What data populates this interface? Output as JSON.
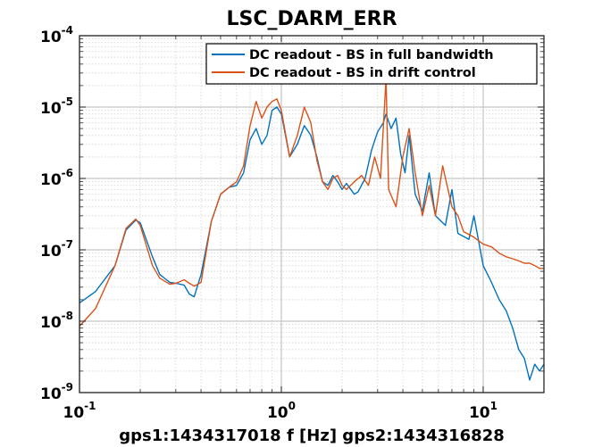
{
  "chart_data": {
    "type": "line",
    "title": "LSC_DARM_ERR",
    "xlabel": "gps1:1434317018  f [Hz]  gps2:1434316828",
    "ylabel": "",
    "xscale": "log",
    "yscale": "log",
    "xlim": [
      0.1,
      20
    ],
    "ylim": [
      1e-09,
      0.0001
    ],
    "grid": true,
    "legend_position": "top-right",
    "x_ticks": [
      {
        "value": 0.1,
        "base": "10",
        "exp": "-1"
      },
      {
        "value": 1,
        "base": "10",
        "exp": "0"
      },
      {
        "value": 10,
        "base": "10",
        "exp": "1"
      }
    ],
    "y_ticks": [
      {
        "value": 1e-09,
        "base": "10",
        "exp": "-9"
      },
      {
        "value": 1e-08,
        "base": "10",
        "exp": "-8"
      },
      {
        "value": 1e-07,
        "base": "10",
        "exp": "-7"
      },
      {
        "value": 1e-06,
        "base": "10",
        "exp": "-6"
      },
      {
        "value": 1e-05,
        "base": "10",
        "exp": "-5"
      },
      {
        "value": 0.0001,
        "base": "10",
        "exp": "-4"
      }
    ],
    "series": [
      {
        "name": "DC readout - BS in full bandwidth",
        "color": "#0072bd",
        "points": [
          [
            0.1,
            1.8e-08
          ],
          [
            0.12,
            2.6e-08
          ],
          [
            0.15,
            6e-08
          ],
          [
            0.17,
            1.9e-07
          ],
          [
            0.19,
            2.6e-07
          ],
          [
            0.2,
            2.4e-07
          ],
          [
            0.23,
            8e-08
          ],
          [
            0.25,
            4.5e-08
          ],
          [
            0.28,
            3.5e-08
          ],
          [
            0.3,
            3.4e-08
          ],
          [
            0.33,
            3.2e-08
          ],
          [
            0.35,
            2.4e-08
          ],
          [
            0.37,
            2.2e-08
          ],
          [
            0.4,
            4.5e-08
          ],
          [
            0.45,
            2.5e-07
          ],
          [
            0.5,
            6e-07
          ],
          [
            0.55,
            7.5e-07
          ],
          [
            0.6,
            8e-07
          ],
          [
            0.65,
            1.2e-06
          ],
          [
            0.7,
            3.5e-06
          ],
          [
            0.75,
            5e-06
          ],
          [
            0.8,
            3e-06
          ],
          [
            0.85,
            4e-06
          ],
          [
            0.9,
            9e-06
          ],
          [
            0.95,
            1e-05
          ],
          [
            1.0,
            8e-06
          ],
          [
            1.1,
            2e-06
          ],
          [
            1.2,
            3e-06
          ],
          [
            1.3,
            5.5e-06
          ],
          [
            1.4,
            4e-06
          ],
          [
            1.5,
            2e-06
          ],
          [
            1.6,
            9e-07
          ],
          [
            1.7,
            8e-07
          ],
          [
            1.8,
            1.1e-06
          ],
          [
            1.9,
            9e-07
          ],
          [
            2.0,
            7e-07
          ],
          [
            2.1,
            8.5e-07
          ],
          [
            2.3,
            6e-07
          ],
          [
            2.4,
            6.5e-07
          ],
          [
            2.6,
            1e-06
          ],
          [
            2.8,
            2.5e-06
          ],
          [
            3.0,
            4.5e-06
          ],
          [
            3.2,
            6e-06
          ],
          [
            3.3,
            8e-06
          ],
          [
            3.5,
            5e-06
          ],
          [
            3.7,
            7e-06
          ],
          [
            3.9,
            2.2e-06
          ],
          [
            4.1,
            1.2e-06
          ],
          [
            4.3,
            4e-06
          ],
          [
            4.6,
            6e-07
          ],
          [
            5.0,
            3.5e-07
          ],
          [
            5.4,
            1.2e-06
          ],
          [
            5.8,
            3e-07
          ],
          [
            6.5,
            2.2e-07
          ],
          [
            7,
            7e-07
          ],
          [
            7.5,
            1.7e-07
          ],
          [
            8.5,
            1.4e-07
          ],
          [
            9,
            3e-07
          ],
          [
            10,
            6e-08
          ],
          [
            11,
            3.5e-08
          ],
          [
            12,
            2e-08
          ],
          [
            13,
            1.4e-08
          ],
          [
            14,
            8e-09
          ],
          [
            15,
            4e-09
          ],
          [
            16,
            3e-09
          ],
          [
            17,
            1.5e-09
          ],
          [
            18,
            2.5e-09
          ],
          [
            19,
            2e-09
          ],
          [
            20,
            2.5e-09
          ]
        ]
      },
      {
        "name": "DC readout - BS in drift control",
        "color": "#d95319",
        "points": [
          [
            0.1,
            8.5e-09
          ],
          [
            0.12,
            1.5e-08
          ],
          [
            0.15,
            6e-08
          ],
          [
            0.17,
            2e-07
          ],
          [
            0.19,
            2.7e-07
          ],
          [
            0.2,
            2.2e-07
          ],
          [
            0.23,
            6e-08
          ],
          [
            0.25,
            4e-08
          ],
          [
            0.28,
            3.3e-08
          ],
          [
            0.3,
            3.4e-08
          ],
          [
            0.33,
            3.8e-08
          ],
          [
            0.35,
            3.4e-08
          ],
          [
            0.37,
            3.1e-08
          ],
          [
            0.4,
            3.5e-08
          ],
          [
            0.45,
            2.5e-07
          ],
          [
            0.5,
            6e-07
          ],
          [
            0.55,
            7.5e-07
          ],
          [
            0.6,
            9e-07
          ],
          [
            0.65,
            1.5e-06
          ],
          [
            0.7,
            5.5e-06
          ],
          [
            0.75,
            1.2e-05
          ],
          [
            0.8,
            7e-06
          ],
          [
            0.85,
            1e-05
          ],
          [
            0.9,
            1.2e-05
          ],
          [
            0.95,
            1.3e-05
          ],
          [
            1.0,
            9e-06
          ],
          [
            1.1,
            2e-06
          ],
          [
            1.2,
            4e-06
          ],
          [
            1.3,
            1e-05
          ],
          [
            1.4,
            6e-06
          ],
          [
            1.5,
            1.8e-06
          ],
          [
            1.6,
            9e-07
          ],
          [
            1.7,
            7e-07
          ],
          [
            1.8,
            1e-06
          ],
          [
            1.9,
            1.1e-06
          ],
          [
            2.0,
            8e-07
          ],
          [
            2.1,
            7e-07
          ],
          [
            2.3,
            9e-07
          ],
          [
            2.5,
            1.1e-06
          ],
          [
            2.7,
            8e-07
          ],
          [
            2.9,
            2e-06
          ],
          [
            3.1,
            1e-06
          ],
          [
            3.3,
            2.5e-05
          ],
          [
            3.4,
            7e-07
          ],
          [
            3.7,
            4e-07
          ],
          [
            4.0,
            2e-06
          ],
          [
            4.3,
            5e-06
          ],
          [
            4.6,
            1.2e-06
          ],
          [
            5.0,
            3e-07
          ],
          [
            5.4,
            8e-07
          ],
          [
            5.8,
            3e-07
          ],
          [
            6.3,
            1.5e-06
          ],
          [
            7,
            4e-07
          ],
          [
            7.5,
            3e-07
          ],
          [
            8,
            1.8e-07
          ],
          [
            9,
            1.5e-07
          ],
          [
            10,
            1.2e-07
          ],
          [
            11,
            1.1e-07
          ],
          [
            12,
            9e-08
          ],
          [
            13,
            8e-08
          ],
          [
            14,
            7.5e-08
          ],
          [
            15,
            7e-08
          ],
          [
            16,
            6.5e-08
          ],
          [
            17,
            6.5e-08
          ],
          [
            18,
            6e-08
          ],
          [
            19,
            5.5e-08
          ],
          [
            20,
            5.5e-08
          ]
        ]
      }
    ]
  }
}
